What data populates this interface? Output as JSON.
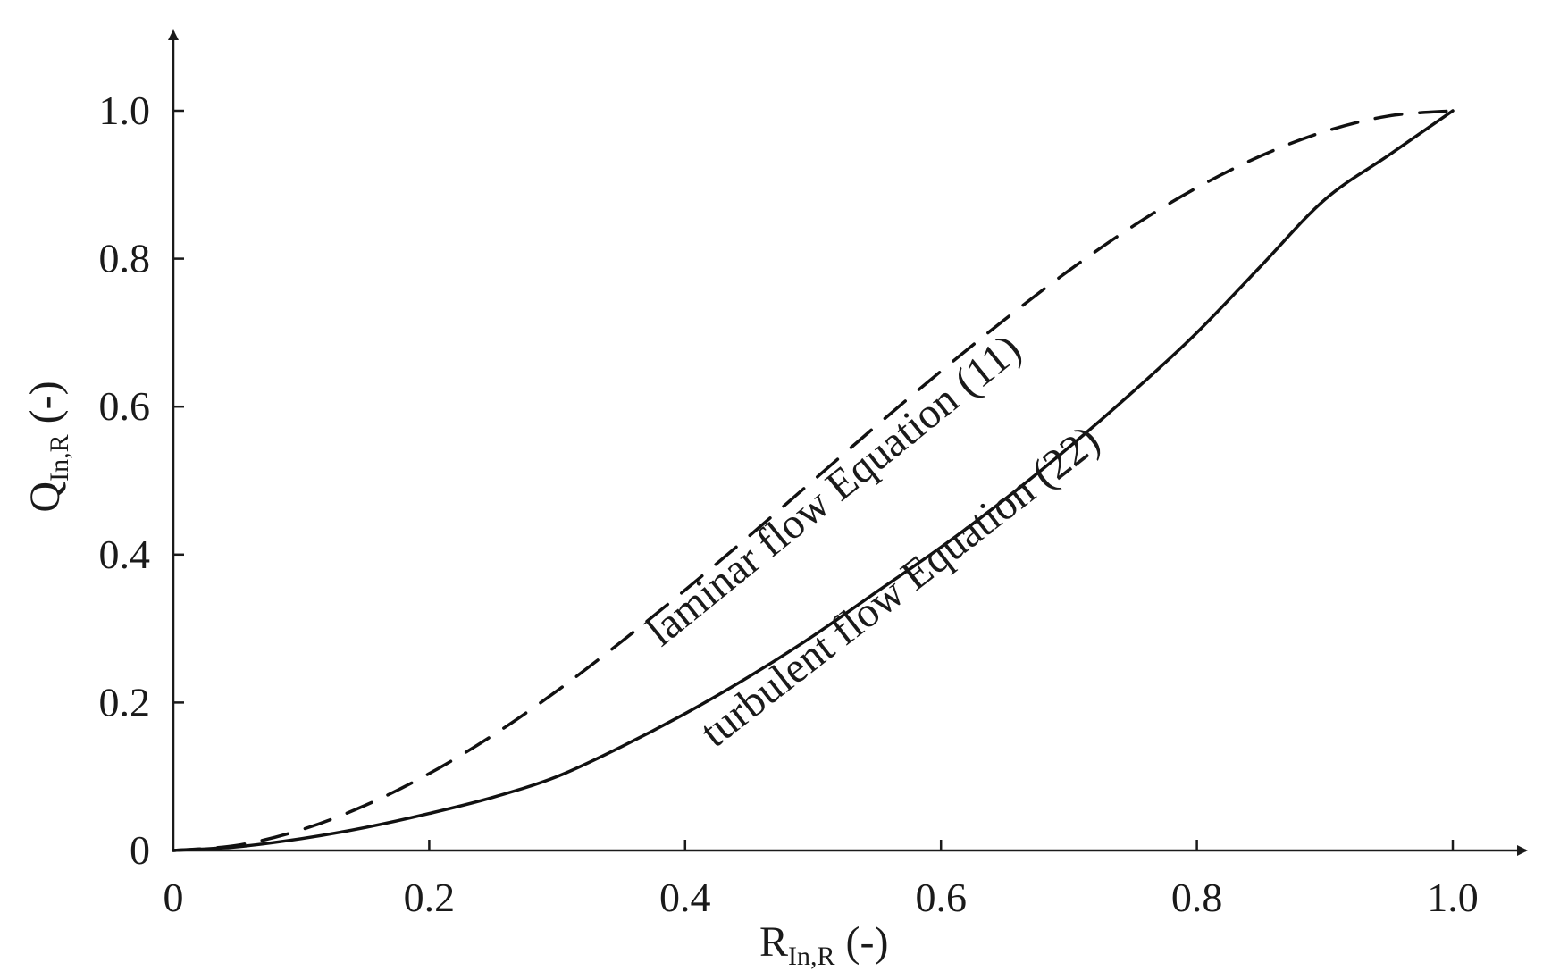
{
  "chart_data": {
    "type": "line",
    "title": "",
    "xlabel": {
      "main": "R",
      "sub": "In,R",
      "unit": "(-)"
    },
    "ylabel": {
      "main": "Q",
      "sub": "In,R",
      "unit": "(-)"
    },
    "xlim": [
      0,
      1.0
    ],
    "ylim": [
      0,
      1.0
    ],
    "x_ticks": [
      {
        "value": 0,
        "label": "0"
      },
      {
        "value": 0.2,
        "label": "0.2"
      },
      {
        "value": 0.4,
        "label": "0.4"
      },
      {
        "value": 0.6,
        "label": "0.6"
      },
      {
        "value": 0.8,
        "label": "0.8"
      },
      {
        "value": 1.0,
        "label": "1.0"
      }
    ],
    "y_ticks": [
      {
        "value": 0,
        "label": "0"
      },
      {
        "value": 0.2,
        "label": "0.2"
      },
      {
        "value": 0.4,
        "label": "0.4"
      },
      {
        "value": 0.6,
        "label": "0.6"
      },
      {
        "value": 0.8,
        "label": "0.8"
      },
      {
        "value": 1.0,
        "label": "1.0"
      }
    ],
    "grid": false,
    "legend": "none",
    "series": [
      {
        "label": "laminar flow Equation (11)",
        "style": "dashed",
        "color": "#111111",
        "x": [
          0,
          0.05,
          0.1,
          0.15,
          0.2,
          0.25,
          0.3,
          0.35,
          0.4,
          0.45,
          0.5,
          0.55,
          0.6,
          0.65,
          0.7,
          0.75,
          0.8,
          0.85,
          0.9,
          0.95,
          1.0
        ],
        "y": [
          0,
          0.007,
          0.028,
          0.061,
          0.104,
          0.156,
          0.216,
          0.282,
          0.352,
          0.425,
          0.5,
          0.575,
          0.648,
          0.718,
          0.784,
          0.844,
          0.896,
          0.939,
          0.972,
          0.993,
          1.0
        ]
      },
      {
        "label": "turbulent flow Equation (22)",
        "style": "solid",
        "color": "#111111",
        "x": [
          0,
          0.05,
          0.1,
          0.15,
          0.2,
          0.25,
          0.3,
          0.35,
          0.4,
          0.45,
          0.5,
          0.55,
          0.6,
          0.65,
          0.7,
          0.75,
          0.8,
          0.85,
          0.9,
          0.95,
          1.0
        ],
        "y": [
          0,
          0.005,
          0.016,
          0.031,
          0.05,
          0.072,
          0.1,
          0.14,
          0.185,
          0.235,
          0.29,
          0.35,
          0.41,
          0.475,
          0.545,
          0.62,
          0.7,
          0.79,
          0.88,
          0.94,
          1.0
        ]
      }
    ]
  }
}
